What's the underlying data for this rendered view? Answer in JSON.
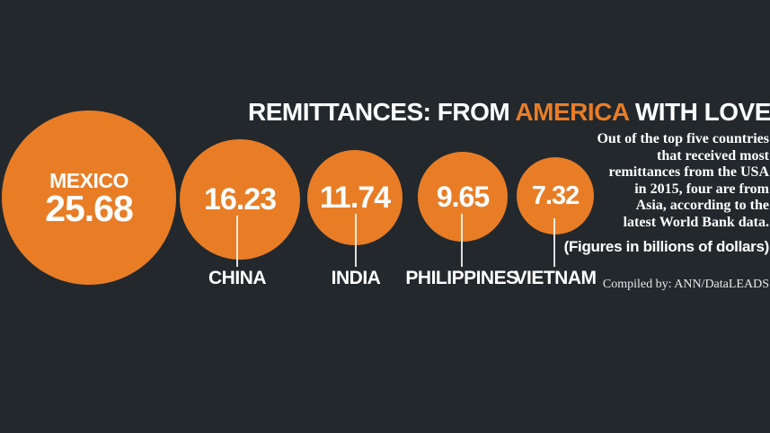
{
  "title": {
    "part1": "REMITTANCES: FROM ",
    "accent": "AMERICA",
    "part2": " WITH LOVE"
  },
  "description": {
    "text": "Out of the top five countries\nthat received most\nremittances from the USA\nin 2015, four are from\nAsia, according to the\nlatest World Bank data."
  },
  "notes": {
    "figures": "(Figures in billions of dollars)",
    "credit": "Compiled by: ANN/DataLEADS"
  },
  "bubbles": [
    {
      "country": "MEXICO",
      "value": "25.68"
    },
    {
      "country": "CHINA",
      "value": "16.23"
    },
    {
      "country": "INDIA",
      "value": "11.74"
    },
    {
      "country": "PHILIPPINES",
      "value": "9.65"
    },
    {
      "country": "VIETNAM",
      "value": "7.32"
    }
  ],
  "colors": {
    "background": "#23282d",
    "accent_orange": "#e87d26",
    "text_white": "#ffffff"
  },
  "chart_data": {
    "type": "bubble",
    "title": "REMITTANCES: FROM AMERICA WITH LOVE",
    "subtitle": "Out of the top five countries that received most remittances from the USA in 2015, four are from Asia, according to the latest World Bank data.",
    "unit": "billions of dollars",
    "categories": [
      "Mexico",
      "China",
      "India",
      "Philippines",
      "Vietnam"
    ],
    "values": [
      25.68,
      16.23,
      11.74,
      9.65,
      7.32
    ],
    "annotations": [
      "(Figures in billions of dollars)",
      "Compiled by: ANN/DataLEADS"
    ],
    "layout": "circles sized by value, arranged left-to-right descending"
  }
}
